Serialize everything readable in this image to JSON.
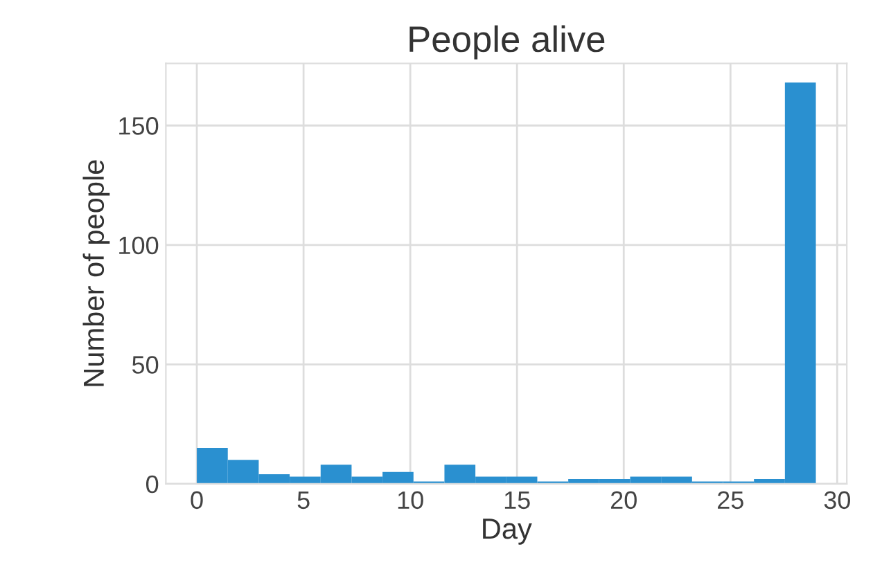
{
  "chart_data": {
    "type": "histogram",
    "title": "People alive",
    "xlabel": "Day",
    "ylabel": "Number of people",
    "bins": [
      0,
      1.45,
      2.9,
      4.35,
      5.8,
      7.25,
      8.7,
      10.15,
      11.6,
      13.05,
      14.5,
      15.95,
      17.4,
      18.85,
      20.3,
      21.75,
      23.2,
      24.65,
      26.1,
      27.55,
      29
    ],
    "values": [
      15,
      10,
      4,
      3,
      8,
      3,
      5,
      1,
      8,
      3,
      3,
      1,
      2,
      2,
      3,
      3,
      1,
      1,
      2,
      168
    ],
    "color": "#2a90d0",
    "xlim": [
      -1.45,
      30.45
    ],
    "ylim": [
      0,
      176
    ],
    "xticks": [
      0,
      5,
      10,
      15,
      20,
      25,
      30
    ],
    "yticks": [
      0,
      50,
      100,
      150
    ],
    "grid": true
  }
}
